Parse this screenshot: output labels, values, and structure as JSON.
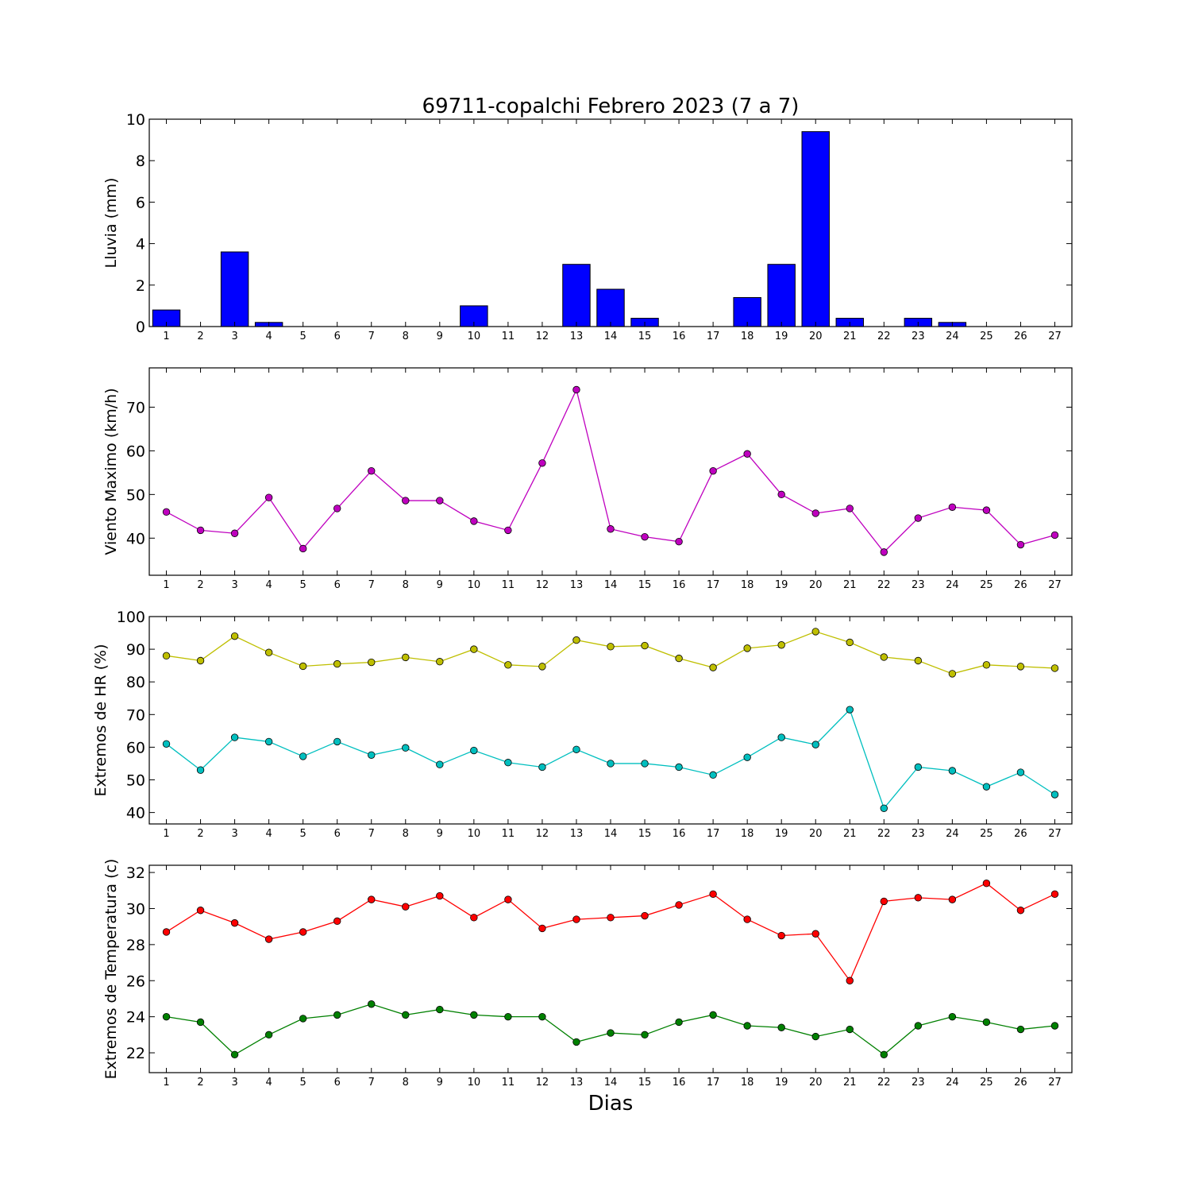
{
  "figure": {
    "title": "69711-copalchi Febrero 2023  (7 a 7)",
    "xlabel": "Dias"
  },
  "chart_data": [
    {
      "type": "bar",
      "ylabel": "Lluvia (mm)",
      "color": "#0000ff",
      "ylim": [
        0,
        10
      ],
      "yticks": [
        0,
        2,
        4,
        6,
        8,
        10
      ],
      "x": [
        1,
        2,
        3,
        4,
        5,
        6,
        7,
        8,
        9,
        10,
        11,
        12,
        13,
        14,
        15,
        16,
        17,
        18,
        19,
        20,
        21,
        22,
        23,
        24,
        25,
        26,
        27
      ],
      "values": [
        0.8,
        0,
        3.6,
        0.2,
        0,
        0,
        0,
        0,
        0,
        1.0,
        0,
        0,
        3.0,
        1.8,
        0.4,
        0,
        0,
        1.4,
        3.0,
        9.4,
        0.4,
        0,
        0.4,
        0.2,
        0,
        0,
        0
      ]
    },
    {
      "type": "line",
      "ylabel": "Viento Maximo (km/h)",
      "ylim": [
        31.5,
        79
      ],
      "yticks": [
        40,
        50,
        60,
        70
      ],
      "x": [
        1,
        2,
        3,
        4,
        5,
        6,
        7,
        8,
        9,
        10,
        11,
        12,
        13,
        14,
        15,
        16,
        17,
        18,
        19,
        20,
        21,
        22,
        23,
        24,
        25,
        26,
        27
      ],
      "series": [
        {
          "color": "#bf00bf",
          "values": [
            46,
            41.8,
            41.1,
            49.3,
            37.6,
            46.8,
            55.4,
            48.6,
            48.6,
            43.9,
            41.8,
            57.2,
            74,
            42.1,
            40.3,
            39.2,
            55.4,
            59.3,
            50,
            45.7,
            46.8,
            36.8,
            44.6,
            47.1,
            46.4,
            38.5,
            40.7
          ]
        }
      ]
    },
    {
      "type": "line",
      "ylabel": "Extremos de HR (%)",
      "ylim": [
        36.5,
        100
      ],
      "yticks": [
        40,
        50,
        60,
        70,
        80,
        90,
        100
      ],
      "x": [
        1,
        2,
        3,
        4,
        5,
        6,
        7,
        8,
        9,
        10,
        11,
        12,
        13,
        14,
        15,
        16,
        17,
        18,
        19,
        20,
        21,
        22,
        23,
        24,
        25,
        26,
        27
      ],
      "series": [
        {
          "color": "#bfbf00",
          "values": [
            88,
            86.5,
            94,
            89,
            84.8,
            85.5,
            86,
            87.5,
            86.2,
            90,
            85.2,
            84.7,
            92.8,
            90.8,
            91.1,
            87.2,
            84.4,
            90.3,
            91.3,
            95.4,
            92.1,
            87.6,
            86.5,
            82.5,
            85.2,
            84.7,
            84.2
          ]
        },
        {
          "color": "#00bfbf",
          "values": [
            61,
            53,
            63,
            61.7,
            57.2,
            61.7,
            57.6,
            59.8,
            54.7,
            59,
            55.3,
            53.9,
            59.3,
            55,
            55,
            53.9,
            51.5,
            56.9,
            63,
            60.8,
            71.5,
            41.3,
            53.9,
            52.8,
            47.9,
            52.3,
            45.5
          ]
        }
      ]
    },
    {
      "type": "line",
      "ylabel": "Extremos de Temperatura (c)",
      "ylim": [
        20.9,
        32.4
      ],
      "yticks": [
        22,
        24,
        26,
        28,
        30,
        32
      ],
      "x": [
        1,
        2,
        3,
        4,
        5,
        6,
        7,
        8,
        9,
        10,
        11,
        12,
        13,
        14,
        15,
        16,
        17,
        18,
        19,
        20,
        21,
        22,
        23,
        24,
        25,
        26,
        27
      ],
      "series": [
        {
          "color": "#ff0000",
          "values": [
            28.7,
            29.9,
            29.2,
            28.3,
            28.7,
            29.3,
            30.5,
            30.1,
            30.7,
            29.5,
            30.5,
            28.9,
            29.4,
            29.5,
            29.6,
            30.2,
            30.8,
            29.4,
            28.5,
            28.6,
            26,
            30.4,
            30.6,
            30.5,
            31.4,
            29.9,
            30.8
          ]
        },
        {
          "color": "#008000",
          "values": [
            24,
            23.7,
            21.9,
            23,
            23.9,
            24.1,
            24.7,
            24.1,
            24.4,
            24.1,
            24,
            24,
            22.6,
            23.1,
            23,
            23.7,
            24.1,
            23.5,
            23.4,
            22.9,
            23.3,
            21.9,
            23.5,
            24,
            23.7,
            23.3,
            23.5
          ]
        }
      ]
    }
  ]
}
